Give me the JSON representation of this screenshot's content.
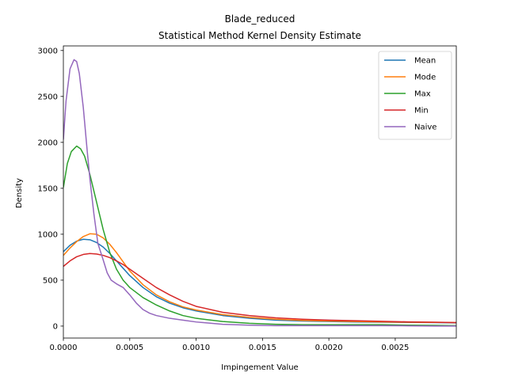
{
  "chart_data": {
    "type": "line",
    "title": "Blade_reduced",
    "subtitle": "Statistical Method Kernel Density Estimate",
    "xlabel": "Impingement Value",
    "ylabel": "Density",
    "xlim": [
      0,
      0.00296
    ],
    "ylim": [
      -130,
      3050
    ],
    "x_ticks": [
      0,
      0.0005,
      0.001,
      0.0015,
      0.002,
      0.0025
    ],
    "x_tick_labels": [
      "0.0000",
      "0.0005",
      "0.0010",
      "0.0015",
      "0.0020",
      "0.0025"
    ],
    "y_ticks": [
      0,
      500,
      1000,
      1500,
      2000,
      2500,
      3000
    ],
    "y_tick_labels": [
      "0",
      "500",
      "1000",
      "1500",
      "2000",
      "2500",
      "3000"
    ],
    "grid": false,
    "legend_position": "top-right",
    "series": [
      {
        "name": "Mean",
        "color": "#1f77b4",
        "x": [
          0,
          5e-05,
          0.0001,
          0.00015,
          0.0002,
          0.00025,
          0.0003,
          0.00035,
          0.0004,
          0.00045,
          0.0005,
          0.0006,
          0.0007,
          0.0008,
          0.0009,
          0.001,
          0.0012,
          0.0014,
          0.0016,
          0.0018,
          0.002,
          0.0022,
          0.0024,
          0.0026,
          0.0028,
          0.00296
        ],
        "y": [
          810,
          880,
          925,
          945,
          940,
          910,
          860,
          790,
          710,
          630,
          550,
          420,
          320,
          250,
          200,
          165,
          115,
          85,
          65,
          55,
          50,
          45,
          42,
          40,
          38,
          35
        ]
      },
      {
        "name": "Mode",
        "color": "#ff7f0e",
        "x": [
          0,
          5e-05,
          0.0001,
          0.00015,
          0.0002,
          0.00025,
          0.0003,
          0.00035,
          0.0004,
          0.00045,
          0.0005,
          0.0006,
          0.0007,
          0.0008,
          0.0009,
          0.001,
          0.0012,
          0.0014,
          0.0016,
          0.0018,
          0.002,
          0.0022,
          0.0024,
          0.0026,
          0.0028,
          0.00296
        ],
        "y": [
          770,
          850,
          920,
          975,
          1005,
          1000,
          960,
          890,
          800,
          700,
          600,
          450,
          340,
          265,
          210,
          175,
          125,
          95,
          75,
          62,
          55,
          50,
          46,
          42,
          40,
          38
        ]
      },
      {
        "name": "Max",
        "color": "#2ca02c",
        "x": [
          0,
          3e-05,
          6e-05,
          0.0001,
          0.00013,
          0.00016,
          0.0002,
          0.00025,
          0.0003,
          0.00035,
          0.0004,
          0.00045,
          0.0005,
          0.0006,
          0.0007,
          0.0008,
          0.0009,
          0.001,
          0.0012,
          0.0014,
          0.0016,
          0.0018,
          0.002,
          0.0022,
          0.0024,
          0.0026,
          0.0028,
          0.00296
        ],
        "y": [
          1510,
          1770,
          1900,
          1960,
          1930,
          1850,
          1650,
          1350,
          1050,
          800,
          620,
          500,
          420,
          310,
          230,
          165,
          115,
          85,
          50,
          30,
          20,
          15,
          15,
          15,
          15,
          10,
          8,
          5
        ]
      },
      {
        "name": "Min",
        "color": "#d62728",
        "x": [
          0,
          5e-05,
          0.0001,
          0.00015,
          0.0002,
          0.00025,
          0.0003,
          0.00035,
          0.0004,
          0.00045,
          0.0005,
          0.0006,
          0.0007,
          0.0008,
          0.0009,
          0.001,
          0.0012,
          0.0014,
          0.0016,
          0.0018,
          0.002,
          0.0022,
          0.0024,
          0.0026,
          0.0028,
          0.00296
        ],
        "y": [
          650,
          710,
          755,
          780,
          790,
          785,
          770,
          745,
          710,
          670,
          620,
          520,
          420,
          340,
          270,
          215,
          150,
          115,
          90,
          75,
          65,
          58,
          52,
          46,
          42,
          38
        ]
      },
      {
        "name": "Naive",
        "color": "#9467bd",
        "x": [
          0,
          2e-05,
          5e-05,
          8e-05,
          0.0001,
          0.00012,
          0.00015,
          0.00018,
          0.0002,
          0.00023,
          0.00026,
          0.0003,
          0.00033,
          0.00036,
          0.0004,
          0.00045,
          0.0005,
          0.00055,
          0.0006,
          0.00065,
          0.0007,
          0.0008,
          0.0009,
          0.001,
          0.0012,
          0.0014,
          0.0016,
          0.0018,
          0.002,
          0.0022,
          0.0024,
          0.0026,
          0.0028,
          0.00296
        ],
        "y": [
          2030,
          2450,
          2800,
          2900,
          2880,
          2750,
          2380,
          1900,
          1600,
          1220,
          900,
          720,
          580,
          500,
          460,
          420,
          340,
          250,
          180,
          140,
          115,
          85,
          65,
          45,
          20,
          10,
          5,
          5,
          5,
          5,
          5,
          3,
          0,
          0
        ]
      }
    ]
  }
}
